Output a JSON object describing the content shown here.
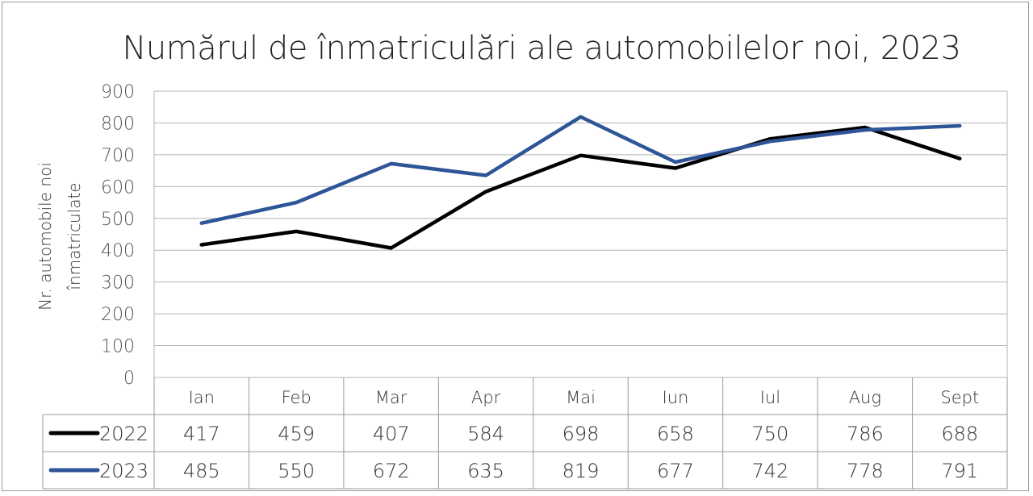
{
  "chart_data": {
    "type": "line",
    "title": "Numărul de înmatriculări ale automobilelor noi, 2023",
    "ylabel_line1": "Nr. automobile noi",
    "ylabel_line2": "înmatriculate",
    "xlabel": "",
    "categories": [
      "Ian",
      "Feb",
      "Mar",
      "Apr",
      "Mai",
      "Iun",
      "Iul",
      "Aug",
      "Sept"
    ],
    "ylim": [
      0,
      900
    ],
    "yticks": [
      0,
      100,
      200,
      300,
      400,
      500,
      600,
      700,
      800,
      900
    ],
    "grid": true,
    "legend": "data-table",
    "series": [
      {
        "name": "2022",
        "color": "#000000",
        "values": [
          417,
          459,
          407,
          584,
          698,
          658,
          750,
          786,
          688
        ]
      },
      {
        "name": "2023",
        "color": "#2E5597",
        "values": [
          485,
          550,
          672,
          635,
          819,
          677,
          742,
          778,
          791
        ]
      }
    ]
  }
}
